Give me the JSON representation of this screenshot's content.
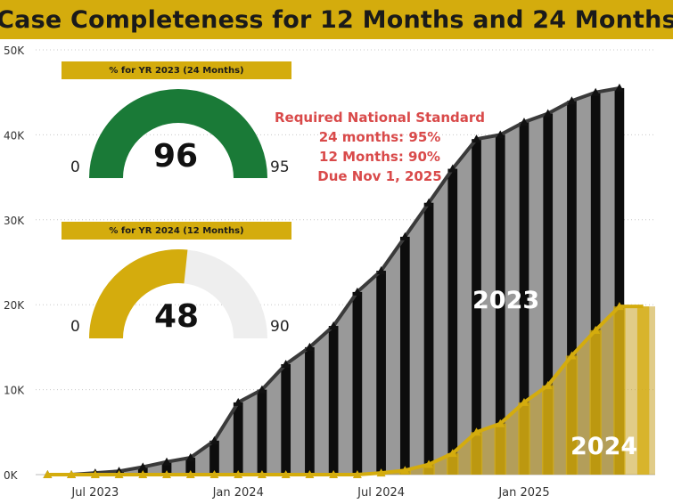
{
  "title": "Case Completeness for 12 Months and 24 Months",
  "chart_data": {
    "type": "bar",
    "x": [
      "2023-05",
      "2023-06",
      "2023-07",
      "2023-08",
      "2023-09",
      "2023-10",
      "2023-11",
      "2023-12",
      "2024-01",
      "2024-02",
      "2024-03",
      "2024-04",
      "2024-05",
      "2024-06",
      "2024-07",
      "2024-08",
      "2024-09",
      "2024-10",
      "2024-11",
      "2024-12",
      "2025-01",
      "2025-02",
      "2025-03",
      "2025-04",
      "2025-05",
      "2025-06"
    ],
    "x_tick_labels": [
      {
        "at": "2023-07",
        "label": "Jul 2023"
      },
      {
        "at": "2024-01",
        "label": "Jan 2024"
      },
      {
        "at": "2024-07",
        "label": "Jul 2024"
      },
      {
        "at": "2025-01",
        "label": "Jan 2025"
      }
    ],
    "y_ticks": [
      "0K",
      "10K",
      "20K",
      "30K",
      "40K",
      "50K"
    ],
    "ylim": [
      0,
      50000
    ],
    "grid": true,
    "series": [
      {
        "name": "2023",
        "color": "#999999",
        "line_color": "#3a3a3a",
        "values": [
          0,
          0,
          200,
          400,
          900,
          1500,
          2000,
          4000,
          8500,
          10000,
          13000,
          15000,
          17500,
          21500,
          24000,
          28000,
          32000,
          36000,
          39500,
          40000,
          41500,
          42500,
          44000,
          45000,
          45500,
          0
        ]
      },
      {
        "name": "2024",
        "color": "#d4ac0d",
        "line_color": "#d4ac0d",
        "values": [
          0,
          0,
          0,
          0,
          0,
          0,
          0,
          0,
          0,
          0,
          0,
          0,
          0,
          0,
          200,
          500,
          1200,
          2500,
          5000,
          6000,
          8500,
          10500,
          14000,
          17000,
          19800,
          19800
        ]
      }
    ],
    "annotations": [
      "2023",
      "2024"
    ]
  },
  "gauges": [
    {
      "label": "% for YR 2023 (24 Months)",
      "value": "96",
      "min": "0",
      "max": "95",
      "fraction": 1.0,
      "color": "#1a7a37"
    },
    {
      "label": "% for YR 2024 (12 Months)",
      "value": "48",
      "min": "0",
      "max": "90",
      "fraction": 0.5333,
      "color": "#d4ac0d"
    }
  ],
  "standard": {
    "line1": "Required National Standard",
    "line2": "24 months: 95%",
    "line3": "12 Months: 90%",
    "line4": "Due Nov 1, 2025"
  }
}
